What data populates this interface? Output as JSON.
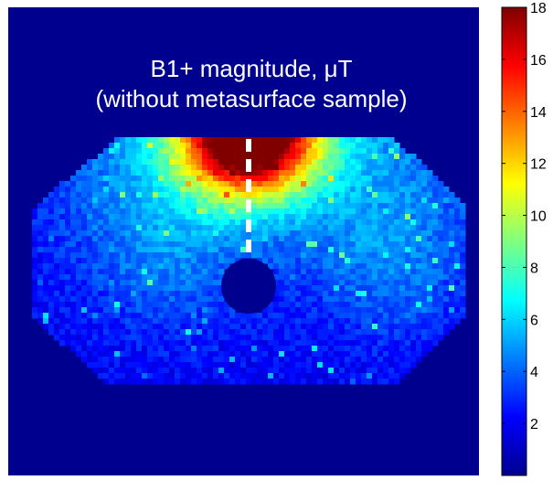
{
  "chart_data": {
    "type": "heatmap",
    "title_lines": [
      "B1+ magnitude, μT",
      "(without metasurface sample)"
    ],
    "colormap": "jet",
    "colorbar": {
      "range": [
        0,
        18
      ],
      "ticks": [
        2,
        4,
        6,
        8,
        10,
        12,
        14,
        16,
        18
      ],
      "tick_labels": [
        "2",
        "4",
        "6",
        "8",
        "10",
        "12",
        "14",
        "16",
        "18"
      ]
    },
    "background_value": 0,
    "phantom_shape": "octagon",
    "field_pattern": {
      "peak_value": 18,
      "peak_location": "top-center",
      "typical_interior_value": 3.5,
      "central_hole_value": 0
    },
    "annotations": [
      {
        "type": "dashed-line",
        "color": "#ffffff",
        "description": "vertical line from peak down to central hole"
      }
    ]
  },
  "colors": {
    "background": "#00008f",
    "title": "#ffffff",
    "dashed_line": "#ffffff"
  }
}
